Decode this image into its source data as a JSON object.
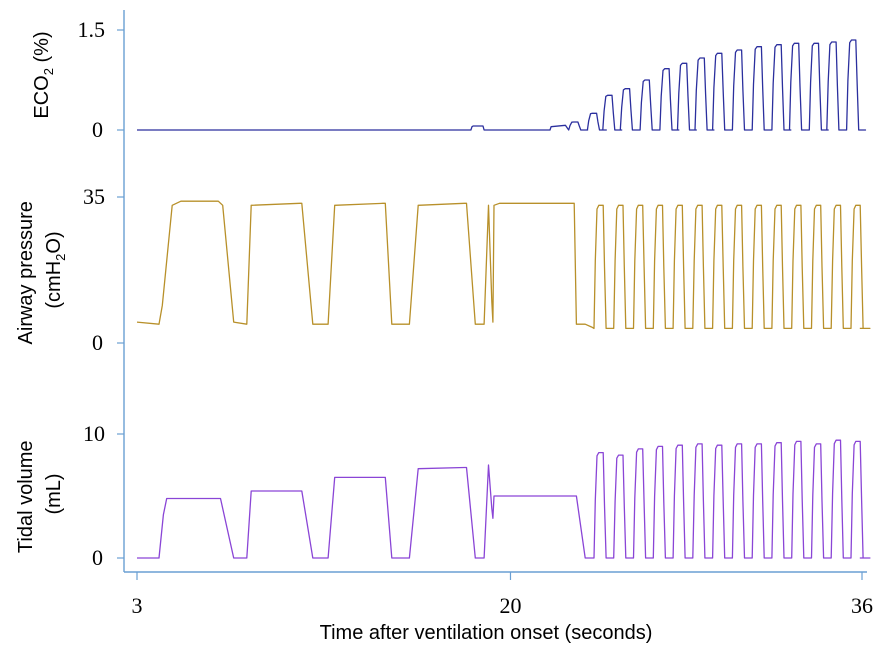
{
  "chart_data": [
    {
      "type": "line",
      "panel": "ECO2",
      "ylabel": "ECO2 (%)",
      "ylabel_main": "ECO",
      "ylabel_sub": "2",
      "ylabel_tail": " (%)",
      "ylim": [
        0,
        1.5
      ],
      "yticks": [
        {
          "value": 0,
          "label": "0"
        },
        {
          "value": 1.5,
          "label": "1.5"
        }
      ],
      "color": "#2b2f9e",
      "series": [
        {
          "x": [
            3,
            18.2,
            18.25,
            18.3,
            18.75,
            18.8,
            21.8,
            21.85,
            22.5
          ],
          "y": [
            0,
            0,
            0.05,
            0.06,
            0.06,
            0,
            0,
            0.05,
            0.07
          ]
        }
      ],
      "pulses": {
        "times": [
          22.65,
          23.5,
          24.2,
          25.0,
          25.9,
          26.8,
          27.6,
          28.4,
          29.2,
          30.1,
          31.0,
          31.9,
          32.7,
          33.6,
          34.4,
          35.3
        ],
        "peaks": [
          0.12,
          0.25,
          0.52,
          0.62,
          0.75,
          0.92,
          1.0,
          1.08,
          1.15,
          1.2,
          1.25,
          1.28,
          1.3,
          1.3,
          1.32,
          1.35
        ],
        "baseline": 0
      }
    },
    {
      "type": "line",
      "panel": "Airway pressure",
      "ylabel": "Airway pressure (cmH2O)",
      "ylabel_line1": "Airway pressure",
      "ylabel_line2_main": "(cmH",
      "ylabel_line2_sub": "2",
      "ylabel_line2_tail": "O)",
      "ylim": [
        0,
        35
      ],
      "yticks": [
        {
          "value": 0,
          "label": "0"
        },
        {
          "value": 35,
          "label": "35"
        }
      ],
      "color": "#b8902a",
      "series": [
        {
          "x": [
            3,
            4.0,
            4.15,
            4.6,
            5.0,
            6.7,
            6.9,
            7.4,
            8.0,
            8.2,
            10.4,
            10.5,
            11.0,
            11.7,
            12.0,
            14.2,
            14.3,
            14.6,
            15.4,
            15.8,
            17.9,
            18.0,
            18.4,
            18.8,
            19.0,
            19.15,
            19.2,
            19.25,
            19.5,
            22.9,
            23.0,
            23.4,
            23.7
          ],
          "y": [
            5,
            4.5,
            9,
            33,
            34,
            34,
            33,
            5,
            4.5,
            33,
            33.5,
            33.5,
            4.5,
            4.5,
            33,
            33.5,
            33.5,
            4.5,
            4.5,
            33,
            33.5,
            33.5,
            4.5,
            4.5,
            33,
            10,
            5,
            33,
            33.5,
            33.5,
            4.5,
            4.5,
            3.8
          ]
        }
      ],
      "pulses": {
        "times": [
          23.8,
          24.7,
          25.6,
          26.5,
          27.4,
          28.3,
          29.2,
          30.1,
          31.0,
          31.9,
          32.8,
          33.7,
          34.6,
          35.5
        ],
        "peaks": [
          33,
          33,
          33,
          33,
          33,
          33,
          33,
          33,
          33,
          33,
          33,
          33,
          33,
          33
        ],
        "baseline": 3.5
      }
    },
    {
      "type": "line",
      "panel": "Tidal volume",
      "ylabel": "Tidal volume (mL)",
      "ylabel_line1": "Tidal volume",
      "ylabel_line2": "(mL)",
      "ylim": [
        0,
        10
      ],
      "yticks": [
        {
          "value": 0,
          "label": "0"
        },
        {
          "value": 10,
          "label": "10"
        }
      ],
      "color": "#8a45d6",
      "series": [
        {
          "x": [
            3,
            4.0,
            4.2,
            4.35,
            6.7,
            6.8,
            7.4,
            8.0,
            8.2,
            10.4,
            10.5,
            11.0,
            11.7,
            12.0,
            14.2,
            14.3,
            14.6,
            15.4,
            15.8,
            17.9,
            18.0,
            18.4,
            18.8,
            19.0,
            19.15,
            19.2,
            19.25,
            19.5,
            22.9,
            23.0,
            23.4,
            23.7
          ],
          "y": [
            0,
            0,
            3.5,
            4.8,
            4.8,
            4.8,
            0,
            0,
            5.4,
            5.4,
            5.4,
            0,
            0,
            6.5,
            6.5,
            6.5,
            0,
            0,
            7.2,
            7.3,
            7.3,
            0,
            0,
            7.5,
            4.0,
            3.2,
            5.0,
            5.0,
            5.0,
            5.0,
            0,
            0
          ]
        }
      ],
      "pulses": {
        "times": [
          23.8,
          24.7,
          25.6,
          26.5,
          27.4,
          28.3,
          29.2,
          30.1,
          31.0,
          31.9,
          32.8,
          33.7,
          34.6,
          35.5
        ],
        "peaks": [
          8.5,
          8.3,
          8.8,
          9.0,
          9.1,
          9.2,
          9.1,
          9.2,
          9.2,
          9.3,
          9.4,
          9.2,
          9.5,
          9.4
        ],
        "baseline": 0
      }
    }
  ],
  "xaxis": {
    "label": "Time after ventilation onset (seconds)",
    "xlim": [
      3,
      36
    ],
    "ticks": [
      {
        "value": 3,
        "label": "3"
      },
      {
        "value": 20,
        "label": "20"
      },
      {
        "value": 36,
        "label": "36"
      }
    ]
  }
}
